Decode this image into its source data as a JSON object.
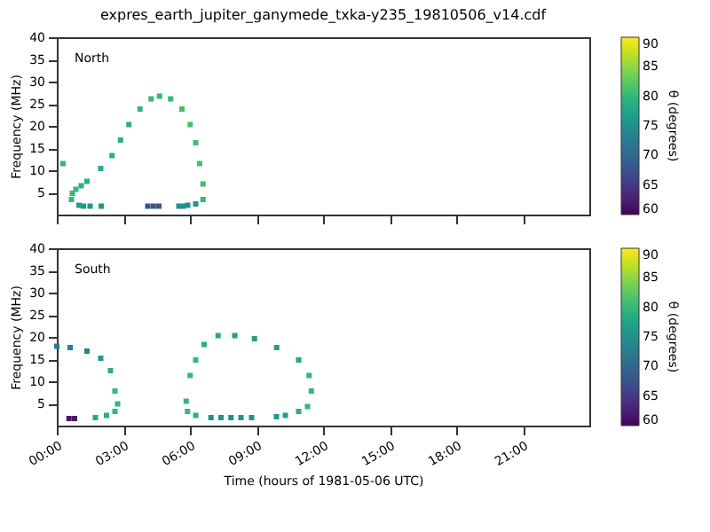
{
  "chart_data": [
    {
      "type": "scatter",
      "title": "expres_earth_jupiter_ganymede_txka-y235_19810506_v14.cdf",
      "annotations": [
        "North"
      ],
      "ylabel": "Frequency (MHz)",
      "clabel": "θ (degrees)",
      "marker": "square",
      "grid": false,
      "tick_labels": "y",
      "x": [
        0.28,
        0.66,
        0.7,
        0.86,
        1.1,
        1.36,
        1.98,
        2.49,
        2.87,
        3.25,
        3.75,
        4.25,
        4.63,
        5.13,
        5.64,
        6.01,
        6.26,
        6.44,
        6.59,
        6.59,
        6.26,
        5.9,
        5.5,
        5.7,
        4.1,
        4.35,
        4.6,
        1.2,
        1.5,
        2.0,
        1.0
      ],
      "values": [
        11.5,
        3.4,
        4.8,
        5.7,
        6.5,
        7.5,
        10.4,
        13.3,
        16.8,
        20.3,
        23.8,
        26.1,
        26.7,
        26.1,
        23.8,
        20.3,
        16.2,
        11.5,
        6.9,
        3.4,
        2.4,
        2.1,
        1.9,
        1.9,
        1.9,
        1.9,
        1.9,
        1.9,
        1.9,
        1.9,
        2.1
      ],
      "cvalues": [
        80,
        80,
        80,
        80,
        79,
        79,
        79,
        79,
        79,
        79,
        80,
        80,
        80,
        80,
        81,
        81,
        81,
        81,
        81,
        80,
        76,
        75,
        75,
        75,
        68,
        68,
        68,
        76,
        76,
        76,
        77
      ],
      "xlim": [
        0,
        24
      ],
      "xticks": [
        {
          "value": 0,
          "label": null
        },
        {
          "value": 3,
          "label": null
        },
        {
          "value": 6,
          "label": null
        },
        {
          "value": 9,
          "label": null
        },
        {
          "value": 12,
          "label": null
        },
        {
          "value": 15,
          "label": null
        },
        {
          "value": 18,
          "label": null
        },
        {
          "value": 21,
          "label": null
        }
      ],
      "ylim": [
        0,
        40
      ],
      "yticks": [
        5,
        10,
        15,
        20,
        25,
        30,
        35,
        40
      ],
      "clim": [
        60,
        90
      ],
      "cticks": [
        60,
        65,
        70,
        75,
        80,
        85,
        90
      ]
    },
    {
      "type": "scatter",
      "annotations": [
        "South"
      ],
      "xlabel": "Time (hours of 1981-05-06 UTC)",
      "ylabel": "Frequency (MHz)",
      "clabel": "θ (degrees)",
      "marker": "square",
      "grid": false,
      "x": [
        0.0,
        0.6,
        1.36,
        1.98,
        2.42,
        2.62,
        2.74,
        2.62,
        2.24,
        1.74,
        0.55,
        0.8,
        5.89,
        5.83,
        6.01,
        6.26,
        6.64,
        7.27,
        8.02,
        8.91,
        9.91,
        10.9,
        11.37,
        11.47,
        11.3,
        10.9,
        10.3,
        9.9,
        6.26,
        6.95,
        7.4,
        7.85,
        8.3,
        8.78
      ],
      "values": [
        17.9,
        17.6,
        16.8,
        15.2,
        12.4,
        7.8,
        4.9,
        3.2,
        2.3,
        1.8,
        1.6,
        1.6,
        3.2,
        5.5,
        11.3,
        14.8,
        18.3,
        20.3,
        20.3,
        19.6,
        17.6,
        14.8,
        11.3,
        7.8,
        4.3,
        3.2,
        2.3,
        2.0,
        2.3,
        1.8,
        1.8,
        1.8,
        1.8,
        1.8
      ],
      "cvalues": [
        72,
        73,
        74,
        76,
        79,
        80,
        80,
        80,
        79,
        78,
        62,
        62,
        80,
        80,
        80,
        80,
        79,
        78,
        77,
        77,
        77,
        78,
        80,
        80,
        80,
        79,
        77,
        76,
        79,
        75,
        75,
        75,
        75,
        75
      ],
      "xlim": [
        0,
        24
      ],
      "xticks": [
        {
          "value": 0,
          "label": "00:00"
        },
        {
          "value": 3,
          "label": "03:00"
        },
        {
          "value": 6,
          "label": "06:00"
        },
        {
          "value": 9,
          "label": "09:00"
        },
        {
          "value": 12,
          "label": "12:00"
        },
        {
          "value": 15,
          "label": "15:00"
        },
        {
          "value": 18,
          "label": "18:00"
        },
        {
          "value": 21,
          "label": "21:00"
        }
      ],
      "ylim": [
        0,
        40
      ],
      "yticks": [
        5,
        10,
        15,
        20,
        25,
        30,
        35,
        40
      ],
      "clim": [
        60,
        90
      ],
      "cticks": [
        60,
        65,
        70,
        75,
        80,
        85,
        90
      ]
    }
  ]
}
